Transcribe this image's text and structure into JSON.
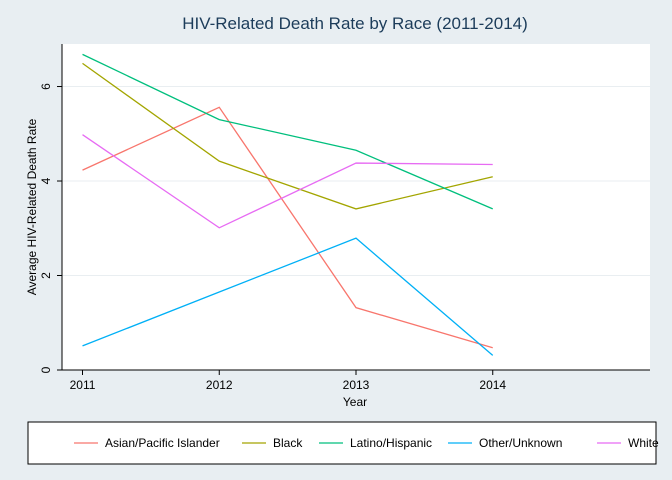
{
  "chart_data": {
    "type": "line",
    "title": "HIV-Related Death Rate by Race (2011-2014)",
    "xlabel": "Year",
    "ylabel": "Average HIV-Related Death Rate",
    "x": [
      2011,
      2012,
      2013,
      2014
    ],
    "xlim": [
      2010.85,
      2015.15
    ],
    "ylim": [
      0,
      6.9
    ],
    "yticks": [
      0,
      2,
      4,
      6
    ],
    "xticks": [
      2011,
      2012,
      2013,
      2014
    ],
    "grid": "horizontal",
    "legend": "bottom",
    "series": [
      {
        "name": "Asian/Pacific Islander",
        "color": "#f8766d",
        "values": [
          4.23,
          5.56,
          1.32,
          0.47
        ]
      },
      {
        "name": "Black",
        "color": "#a3a500",
        "values": [
          6.49,
          4.42,
          3.41,
          4.09
        ]
      },
      {
        "name": "Latino/Hispanic",
        "color": "#00bf7d",
        "values": [
          6.68,
          5.3,
          4.65,
          3.41
        ]
      },
      {
        "name": "Other/Unknown",
        "color": "#00b0f6",
        "values": [
          0.51,
          1.65,
          2.79,
          0.31
        ]
      },
      {
        "name": "White",
        "color": "#e76bf3",
        "values": [
          4.98,
          3.01,
          4.38,
          4.35
        ]
      }
    ]
  }
}
